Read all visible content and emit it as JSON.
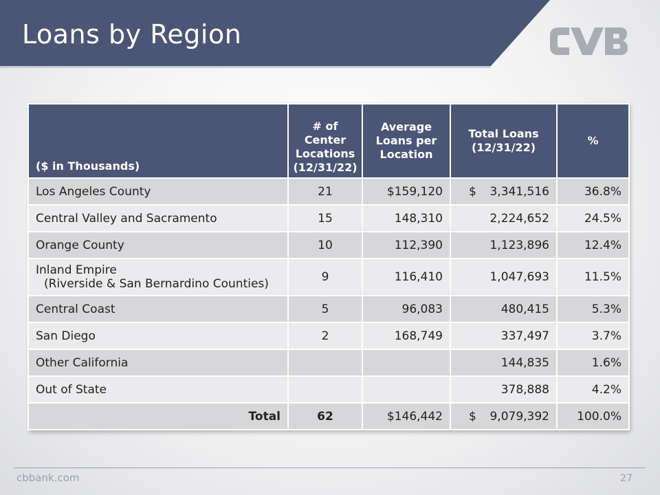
{
  "slide": {
    "title": "Loans by Region",
    "footer_site": "cbbank.com",
    "page_number": "27",
    "logo_name": "cvb-logo"
  },
  "colors": {
    "banner": "#4a5674",
    "header_bg": "#4a5674",
    "row_dark": "#d7d7da",
    "row_light": "#ebebed"
  },
  "table": {
    "headers": {
      "region": "($ in Thousands)",
      "locations": [
        "# of",
        "Center",
        "Locations",
        "(12/31/22)"
      ],
      "avg": [
        "Average",
        "Loans per",
        "Location"
      ],
      "total": [
        "Total Loans",
        "(12/31/22)"
      ],
      "pct": "%"
    },
    "rows": [
      {
        "region": "Los Angeles County",
        "locations": "21",
        "avg": "$159,120",
        "dollar": "$",
        "total": "3,341,516",
        "pct": "36.8%"
      },
      {
        "region": "Central Valley and Sacramento",
        "locations": "15",
        "avg": "148,310",
        "dollar": "",
        "total": "2,224,652",
        "pct": "24.5%"
      },
      {
        "region": "Orange County",
        "locations": "10",
        "avg": "112,390",
        "dollar": "",
        "total": "1,123,896",
        "pct": "12.4%"
      },
      {
        "region": "Inland Empire",
        "region_sub": "(Riverside & San Bernardino Counties)",
        "locations": "9",
        "avg": "116,410",
        "dollar": "",
        "total": "1,047,693",
        "pct": "11.5%"
      },
      {
        "region": "Central Coast",
        "locations": "5",
        "avg": "96,083",
        "dollar": "",
        "total": "480,415",
        "pct": "5.3%"
      },
      {
        "region": "San Diego",
        "locations": "2",
        "avg": "168,749",
        "dollar": "",
        "total": "337,497",
        "pct": "3.7%"
      },
      {
        "region": "Other California",
        "locations": "",
        "avg": "",
        "dollar": "",
        "total": "144,835",
        "pct": "1.6%"
      },
      {
        "region": "Out of State",
        "locations": "",
        "avg": "",
        "dollar": "",
        "total": "378,888",
        "pct": "4.2%"
      }
    ],
    "total_row": {
      "label": "Total",
      "locations": "62",
      "avg": "$146,442",
      "dollar": "$",
      "total": "9,079,392",
      "pct": "100.0%"
    }
  }
}
